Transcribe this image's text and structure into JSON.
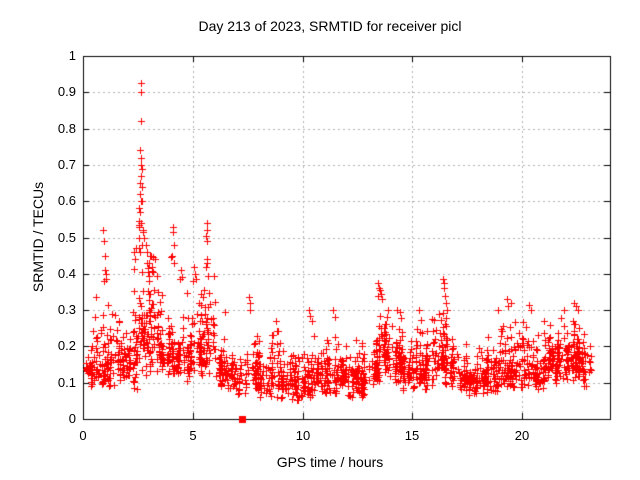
{
  "chart_data": {
    "type": "scatter",
    "title": "Day 213 of 2023, SRMTID for receiver picl",
    "xlabel": "GPS time / hours",
    "ylabel": "SRMTID / TECUs",
    "xlim": [
      0,
      24
    ],
    "ylim": [
      0,
      1
    ],
    "xticks": {
      "values": [
        0,
        5,
        10,
        15,
        20
      ],
      "labels": [
        "0",
        "5",
        "10",
        "15",
        "20"
      ]
    },
    "yticks": {
      "values": [
        0,
        0.1,
        0.2,
        0.3,
        0.4,
        0.5,
        0.6,
        0.7,
        0.8,
        0.9,
        1
      ],
      "labels": [
        "0",
        "0.1",
        "0.2",
        "0.3",
        "0.4",
        "0.5",
        "0.6",
        "0.7",
        "0.8",
        "0.9",
        "1"
      ]
    },
    "grid": {
      "visible": true,
      "style": "dashed",
      "color": "#b3b3b3"
    },
    "legend": "none",
    "series": [
      {
        "name": "SRMTID",
        "marker": "plus",
        "marker_size": 7,
        "color": "#ff0000"
      }
    ],
    "background": "#ffffff",
    "border_color": "#000000",
    "bins_format": "[start_hour, width_hours, point_count, y_min, y_typical, y_max] — density envelope read from the plot",
    "distribution_bins": [
      [
        0.0,
        0.5,
        38,
        0.08,
        0.15,
        0.28
      ],
      [
        0.5,
        0.5,
        40,
        0.07,
        0.14,
        0.34
      ],
      [
        1.0,
        0.5,
        42,
        0.09,
        0.17,
        0.36
      ],
      [
        1.5,
        0.5,
        42,
        0.1,
        0.18,
        0.32
      ],
      [
        2.0,
        0.5,
        46,
        0.08,
        0.2,
        0.43
      ],
      [
        2.5,
        0.5,
        55,
        0.12,
        0.27,
        0.45
      ],
      [
        3.0,
        0.5,
        50,
        0.12,
        0.25,
        0.42
      ],
      [
        3.5,
        0.5,
        45,
        0.1,
        0.2,
        0.38
      ],
      [
        4.0,
        0.5,
        45,
        0.1,
        0.19,
        0.4
      ],
      [
        4.5,
        0.5,
        42,
        0.1,
        0.18,
        0.36
      ],
      [
        5.0,
        0.5,
        42,
        0.1,
        0.2,
        0.37
      ],
      [
        5.5,
        0.5,
        45,
        0.12,
        0.22,
        0.4
      ],
      [
        6.0,
        0.5,
        38,
        0.09,
        0.16,
        0.3
      ],
      [
        6.5,
        0.5,
        36,
        0.08,
        0.14,
        0.27
      ],
      [
        7.0,
        0.5,
        28,
        0.07,
        0.13,
        0.25
      ],
      [
        7.5,
        0.5,
        30,
        0.07,
        0.14,
        0.28
      ],
      [
        8.0,
        0.5,
        38,
        0.06,
        0.12,
        0.22
      ],
      [
        8.5,
        0.5,
        38,
        0.06,
        0.13,
        0.25
      ],
      [
        9.0,
        0.5,
        38,
        0.05,
        0.12,
        0.2
      ],
      [
        9.5,
        0.5,
        38,
        0.05,
        0.1,
        0.18
      ],
      [
        10.0,
        0.5,
        42,
        0.06,
        0.12,
        0.24
      ],
      [
        10.5,
        0.5,
        42,
        0.07,
        0.13,
        0.24
      ],
      [
        11.0,
        0.5,
        42,
        0.07,
        0.14,
        0.27
      ],
      [
        11.5,
        0.5,
        42,
        0.07,
        0.13,
        0.24
      ],
      [
        12.0,
        0.5,
        42,
        0.06,
        0.12,
        0.22
      ],
      [
        12.5,
        0.5,
        42,
        0.06,
        0.12,
        0.22
      ],
      [
        13.0,
        0.5,
        45,
        0.08,
        0.15,
        0.28
      ],
      [
        13.5,
        0.5,
        52,
        0.12,
        0.22,
        0.33
      ],
      [
        14.0,
        0.5,
        46,
        0.1,
        0.18,
        0.29
      ],
      [
        14.5,
        0.5,
        42,
        0.08,
        0.15,
        0.26
      ],
      [
        15.0,
        0.5,
        42,
        0.08,
        0.15,
        0.28
      ],
      [
        15.5,
        0.5,
        42,
        0.08,
        0.15,
        0.28
      ],
      [
        16.0,
        0.5,
        45,
        0.1,
        0.17,
        0.3
      ],
      [
        16.5,
        0.5,
        45,
        0.09,
        0.16,
        0.29
      ],
      [
        17.0,
        0.5,
        38,
        0.07,
        0.13,
        0.22
      ],
      [
        17.5,
        0.5,
        38,
        0.06,
        0.12,
        0.21
      ],
      [
        18.0,
        0.5,
        40,
        0.07,
        0.13,
        0.24
      ],
      [
        18.5,
        0.5,
        40,
        0.07,
        0.14,
        0.26
      ],
      [
        19.0,
        0.5,
        40,
        0.08,
        0.15,
        0.28
      ],
      [
        19.5,
        0.5,
        40,
        0.08,
        0.15,
        0.27
      ],
      [
        20.0,
        0.5,
        40,
        0.09,
        0.16,
        0.28
      ],
      [
        20.5,
        0.5,
        40,
        0.08,
        0.14,
        0.24
      ],
      [
        21.0,
        0.5,
        42,
        0.1,
        0.17,
        0.27
      ],
      [
        21.5,
        0.5,
        44,
        0.1,
        0.18,
        0.28
      ],
      [
        22.0,
        0.5,
        46,
        0.1,
        0.19,
        0.3
      ],
      [
        22.5,
        0.5,
        44,
        0.09,
        0.18,
        0.28
      ],
      [
        23.0,
        0.15,
        8,
        0.1,
        0.16,
        0.24
      ]
    ],
    "notable_points": [
      [
        0.92,
        0.52
      ],
      [
        0.96,
        0.49
      ],
      [
        1.0,
        0.45
      ],
      [
        0.98,
        0.41
      ],
      [
        1.03,
        0.4
      ],
      [
        1.06,
        0.385
      ],
      [
        0.94,
        0.38
      ],
      [
        2.3,
        0.46
      ],
      [
        2.36,
        0.44
      ],
      [
        2.42,
        0.47
      ],
      [
        2.62,
        0.925
      ],
      [
        2.62,
        0.9
      ],
      [
        2.62,
        0.82
      ],
      [
        2.6,
        0.74
      ],
      [
        2.63,
        0.72
      ],
      [
        2.66,
        0.7
      ],
      [
        2.7,
        0.69
      ],
      [
        2.64,
        0.67
      ],
      [
        2.58,
        0.65
      ],
      [
        2.68,
        0.64
      ],
      [
        2.61,
        0.62
      ],
      [
        2.63,
        0.6
      ],
      [
        2.67,
        0.6
      ],
      [
        2.57,
        0.58
      ],
      [
        2.6,
        0.57
      ],
      [
        2.55,
        0.545
      ],
      [
        2.64,
        0.54
      ],
      [
        2.57,
        0.535
      ],
      [
        2.56,
        0.53
      ],
      [
        2.73,
        0.52
      ],
      [
        2.75,
        0.515
      ],
      [
        2.56,
        0.5
      ],
      [
        2.68,
        0.48
      ],
      [
        2.55,
        0.47
      ],
      [
        2.6,
        0.46
      ],
      [
        2.8,
        0.5
      ],
      [
        2.85,
        0.48
      ],
      [
        2.9,
        0.46
      ],
      [
        3.05,
        0.45
      ],
      [
        3.1,
        0.45
      ],
      [
        3.18,
        0.445
      ],
      [
        3.3,
        0.44
      ],
      [
        3.02,
        0.43
      ],
      [
        3.12,
        0.42
      ],
      [
        4.1,
        0.53
      ],
      [
        4.1,
        0.515
      ],
      [
        4.14,
        0.48
      ],
      [
        4.05,
        0.45
      ],
      [
        4.0,
        0.446
      ],
      [
        4.16,
        0.43
      ],
      [
        4.48,
        0.41
      ],
      [
        4.52,
        0.39
      ],
      [
        4.44,
        0.385
      ],
      [
        5.05,
        0.42
      ],
      [
        5.1,
        0.4
      ],
      [
        5.15,
        0.385
      ],
      [
        5.02,
        0.38
      ],
      [
        5.64,
        0.54
      ],
      [
        5.64,
        0.52
      ],
      [
        5.62,
        0.505
      ],
      [
        5.66,
        0.49
      ],
      [
        5.63,
        0.44
      ],
      [
        5.65,
        0.43
      ],
      [
        5.6,
        0.42
      ],
      [
        7.55,
        0.335
      ],
      [
        7.6,
        0.32
      ],
      [
        7.62,
        0.3
      ],
      [
        8.8,
        0.27
      ],
      [
        10.3,
        0.3
      ],
      [
        10.36,
        0.285
      ],
      [
        10.42,
        0.27
      ],
      [
        11.4,
        0.3
      ],
      [
        11.46,
        0.28
      ],
      [
        13.45,
        0.375
      ],
      [
        13.48,
        0.36
      ],
      [
        13.52,
        0.355
      ],
      [
        13.56,
        0.345
      ],
      [
        13.44,
        0.34
      ],
      [
        13.6,
        0.33
      ],
      [
        14.3,
        0.3
      ],
      [
        14.45,
        0.295
      ],
      [
        15.3,
        0.3
      ],
      [
        16.4,
        0.385
      ],
      [
        16.44,
        0.375
      ],
      [
        16.42,
        0.36
      ],
      [
        16.47,
        0.34
      ],
      [
        16.52,
        0.32
      ],
      [
        16.56,
        0.3
      ],
      [
        18.9,
        0.3
      ],
      [
        19.3,
        0.33
      ],
      [
        19.36,
        0.31
      ],
      [
        19.5,
        0.32
      ],
      [
        20.3,
        0.315
      ],
      [
        20.4,
        0.3
      ],
      [
        21.9,
        0.3
      ],
      [
        22.35,
        0.32
      ],
      [
        22.45,
        0.31
      ],
      [
        22.55,
        0.3
      ]
    ],
    "special_points": [
      {
        "x": 7.23,
        "y": 0,
        "marker": "filled-square",
        "color": "#ff0000"
      }
    ]
  }
}
